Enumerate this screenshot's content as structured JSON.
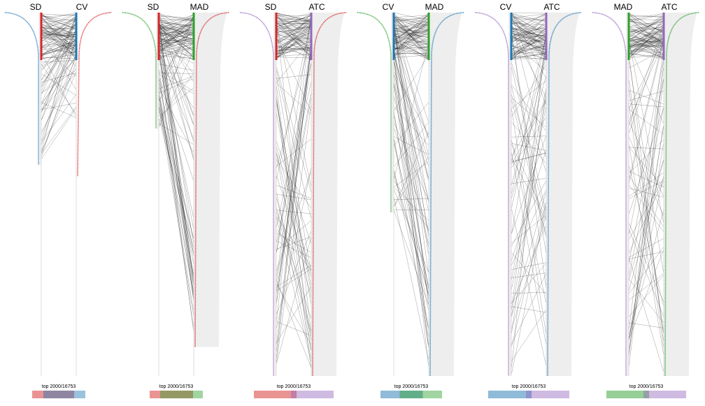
{
  "colors": {
    "SD": "#d62728",
    "CV": "#1f77b4",
    "MAD": "#2ca02c",
    "ATC": "#9467bd",
    "links": "#000000",
    "ribbon": "#eeeeee"
  },
  "chart_data": [
    {
      "type": "parallel-rank",
      "left": "SD",
      "right": "CV",
      "left_tail_color": "#1f77b4",
      "right_tail_color": "#d62728",
      "left_tail_length": 0.42,
      "right_tail_length": 0.45,
      "link_count": 120,
      "link_spread": 0.3,
      "top_label": "top 2000/16753",
      "bar": {
        "left_only": 0.16,
        "shared": 0.44,
        "right_only": 0.16
      }
    },
    {
      "type": "parallel-rank",
      "left": "SD",
      "right": "MAD",
      "left_tail_color": "#2ca02c",
      "right_tail_color": "#d62728",
      "left_tail_length": 0.32,
      "right_tail_length": 0.92,
      "link_count": 140,
      "link_spread": 0.9,
      "top_label": "top 2000/16753",
      "bar": {
        "left_only": 0.15,
        "shared": 0.47,
        "right_only": 0.14
      }
    },
    {
      "type": "parallel-rank",
      "left": "SD",
      "right": "ATC",
      "left_tail_color": "#9467bd",
      "right_tail_color": "#d62728",
      "left_tail_length": 1.0,
      "right_tail_length": 1.0,
      "link_count": 150,
      "link_spread": 1.0,
      "top_label": "top 2000/16753",
      "bar": {
        "left_only": 0.45,
        "shared": 0.07,
        "right_only": 0.45
      }
    },
    {
      "type": "parallel-rank",
      "left": "CV",
      "right": "MAD",
      "left_tail_color": "#2ca02c",
      "right_tail_color": "#1f77b4",
      "left_tail_length": 0.55,
      "right_tail_length": 1.0,
      "link_count": 140,
      "link_spread": 1.0,
      "top_label": "top 2000/16753",
      "bar": {
        "left_only": 0.25,
        "shared": 0.3,
        "right_only": 0.25
      }
    },
    {
      "type": "parallel-rank",
      "left": "CV",
      "right": "ATC",
      "left_tail_color": "#9467bd",
      "right_tail_color": "#1f77b4",
      "left_tail_length": 1.0,
      "right_tail_length": 1.0,
      "link_count": 150,
      "link_spread": 1.0,
      "top_label": "top 2000/16753",
      "bar": {
        "left_only": 0.45,
        "shared": 0.07,
        "right_only": 0.45
      }
    },
    {
      "type": "parallel-rank",
      "left": "MAD",
      "right": "ATC",
      "left_tail_color": "#9467bd",
      "right_tail_color": "#2ca02c",
      "left_tail_length": 1.0,
      "right_tail_length": 1.0,
      "link_count": 150,
      "link_spread": 1.0,
      "top_label": "top 2000/16753",
      "bar": {
        "left_only": 0.45,
        "shared": 0.07,
        "right_only": 0.45
      }
    }
  ]
}
